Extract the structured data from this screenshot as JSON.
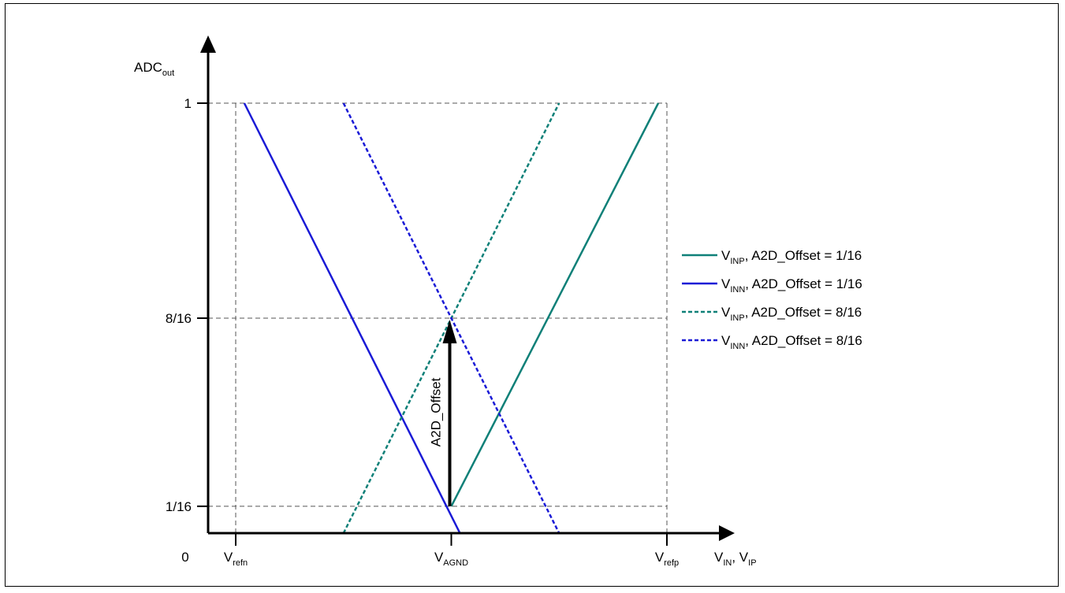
{
  "chart_data": {
    "type": "line",
    "title": "",
    "xlabel": {
      "main1": "V",
      "sub1": "IN",
      "sep": ", ",
      "main2": "V",
      "sub2": "IP"
    },
    "ylabel": {
      "main": "ADC",
      "sub": "out"
    },
    "origin_label": "0",
    "x_ticks": [
      {
        "main": "V",
        "sub": "refn",
        "x": -1
      },
      {
        "main": "V",
        "sub": "AGND",
        "x": 0
      },
      {
        "main": "V",
        "sub": "refp",
        "x": 1
      }
    ],
    "y_ticks": [
      {
        "label": "1/16",
        "y": 0.0625
      },
      {
        "label": "8/16",
        "y": 0.5
      },
      {
        "label": "1",
        "y": 1
      }
    ],
    "xlim": [
      -1,
      1
    ],
    "ylim": [
      0,
      1
    ],
    "grid": "dashed at tick values",
    "series": [
      {
        "name_main": "V",
        "name_sub": "INP",
        "name_rest": ", A2D_Offset = 1/16",
        "color": "#0f8078",
        "dash": "solid",
        "x": [
          0,
          0.96
        ],
        "y": [
          0.0625,
          1
        ]
      },
      {
        "name_main": "V",
        "name_sub": "INN",
        "name_rest": ", A2D_Offset = 1/16",
        "color": "#1a1ad6",
        "dash": "solid",
        "x": [
          -0.96,
          0.04
        ],
        "y": [
          1,
          0.0
        ]
      },
      {
        "name_main": "V",
        "name_sub": "INP",
        "name_rest": ", A2D_Offset = 8/16",
        "color": "#0f8078",
        "dash": "dotted",
        "x": [
          -0.5,
          0.5
        ],
        "y": [
          0.0,
          1
        ]
      },
      {
        "name_main": "V",
        "name_sub": "INN",
        "name_rest": ", A2D_Offset = 8/16",
        "color": "#1a1ad6",
        "dash": "dotted",
        "x": [
          -0.5,
          0.5
        ],
        "y": [
          1,
          0.0
        ]
      }
    ],
    "annotation": {
      "text": "A2D_Offset",
      "from_y": 0.0625,
      "to_y": 0.5,
      "x": 0
    }
  }
}
